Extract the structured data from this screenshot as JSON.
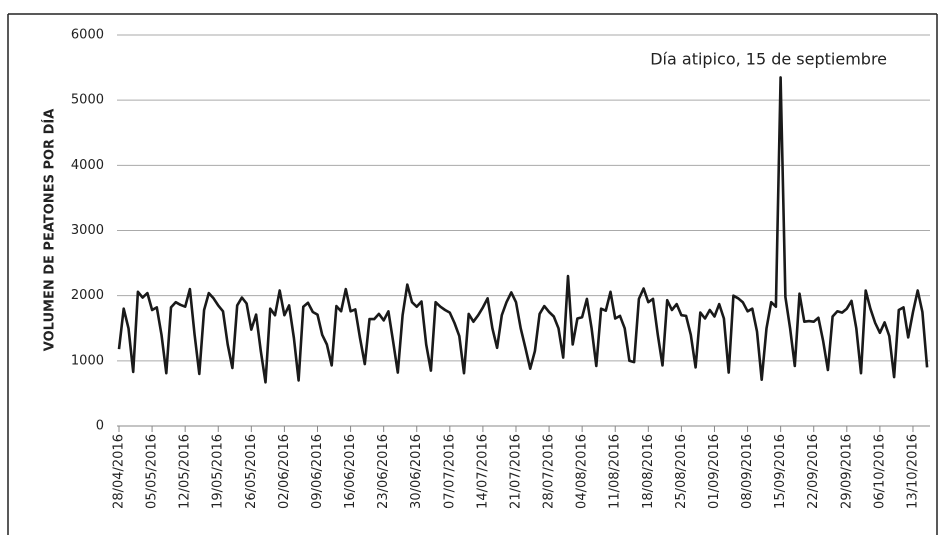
{
  "chart_data": {
    "type": "line",
    "y_label": "VOLUMEN DE PEATONES POR DÍA",
    "annotation": "Día atipico, 15 de septiembre",
    "annotation_index": 140,
    "color": "#1a1a1a",
    "grid": true,
    "ylim": [
      0,
      6000
    ],
    "yticks": [
      0,
      1000,
      2000,
      3000,
      4000,
      5000,
      6000
    ],
    "categories": [
      "28/04/2016",
      null,
      null,
      null,
      null,
      null,
      null,
      "05/05/2016",
      null,
      null,
      null,
      null,
      null,
      null,
      "12/05/2016",
      null,
      null,
      null,
      null,
      null,
      null,
      "19/05/2016",
      null,
      null,
      null,
      null,
      null,
      null,
      "26/05/2016",
      null,
      null,
      null,
      null,
      null,
      null,
      "02/06/2016",
      null,
      null,
      null,
      null,
      null,
      null,
      "09/06/2016",
      null,
      null,
      null,
      null,
      null,
      null,
      "16/06/2016",
      null,
      null,
      null,
      null,
      null,
      null,
      "23/06/2016",
      null,
      null,
      null,
      null,
      null,
      null,
      "30/06/2016",
      null,
      null,
      null,
      null,
      null,
      null,
      "07/07/2016",
      null,
      null,
      null,
      null,
      null,
      null,
      "14/07/2016",
      null,
      null,
      null,
      null,
      null,
      null,
      "21/07/2016",
      null,
      null,
      null,
      null,
      null,
      null,
      "28/07/2016",
      null,
      null,
      null,
      null,
      null,
      null,
      "04/08/2016",
      null,
      null,
      null,
      null,
      null,
      null,
      "11/08/2016",
      null,
      null,
      null,
      null,
      null,
      null,
      "18/08/2016",
      null,
      null,
      null,
      null,
      null,
      null,
      "25/08/2016",
      null,
      null,
      null,
      null,
      null,
      null,
      "01/09/2016",
      null,
      null,
      null,
      null,
      null,
      null,
      "08/09/2016",
      null,
      null,
      null,
      null,
      null,
      null,
      "15/09/2016",
      null,
      null,
      null,
      null,
      null,
      null,
      "22/09/2016",
      null,
      null,
      null,
      null,
      null,
      null,
      "29/09/2016",
      null,
      null,
      null,
      null,
      null,
      null,
      "06/10/2016",
      null,
      null,
      null,
      null,
      null,
      null,
      "13/10/2016",
      null,
      null,
      null
    ],
    "values": [
      1180,
      1800,
      1500,
      830,
      2060,
      1970,
      2040,
      1780,
      1820,
      1400,
      810,
      1820,
      1900,
      1860,
      1830,
      2100,
      1400,
      800,
      1780,
      2040,
      1960,
      1850,
      1760,
      1250,
      890,
      1850,
      1970,
      1880,
      1480,
      1710,
      1150,
      670,
      1800,
      1700,
      2080,
      1700,
      1850,
      1350,
      700,
      1830,
      1890,
      1750,
      1710,
      1400,
      1250,
      930,
      1840,
      1760,
      2100,
      1760,
      1790,
      1350,
      950,
      1640,
      1640,
      1720,
      1620,
      1760,
      1300,
      820,
      1700,
      2170,
      1900,
      1830,
      1910,
      1250,
      850,
      1900,
      1830,
      1780,
      1740,
      1580,
      1380,
      810,
      1720,
      1600,
      1700,
      1820,
      1960,
      1500,
      1200,
      1700,
      1900,
      2050,
      1900,
      1500,
      1200,
      880,
      1150,
      1720,
      1840,
      1750,
      1680,
      1500,
      1050,
      2300,
      1250,
      1650,
      1670,
      1950,
      1500,
      920,
      1800,
      1770,
      2060,
      1650,
      1690,
      1500,
      1000,
      980,
      1950,
      2110,
      1900,
      1950,
      1400,
      930,
      1930,
      1780,
      1870,
      1700,
      1690,
      1400,
      900,
      1740,
      1650,
      1780,
      1680,
      1870,
      1650,
      820,
      2000,
      1960,
      1900,
      1760,
      1800,
      1450,
      710,
      1500,
      1900,
      1830,
      5350,
      1980,
      1500,
      920,
      2030,
      1600,
      1610,
      1600,
      1660,
      1300,
      860,
      1680,
      1760,
      1740,
      1800,
      1920,
      1500,
      810,
      2080,
      1800,
      1580,
      1430,
      1590,
      1380,
      750,
      1780,
      1820,
      1360,
      1750,
      2080,
      1750,
      900
    ]
  }
}
